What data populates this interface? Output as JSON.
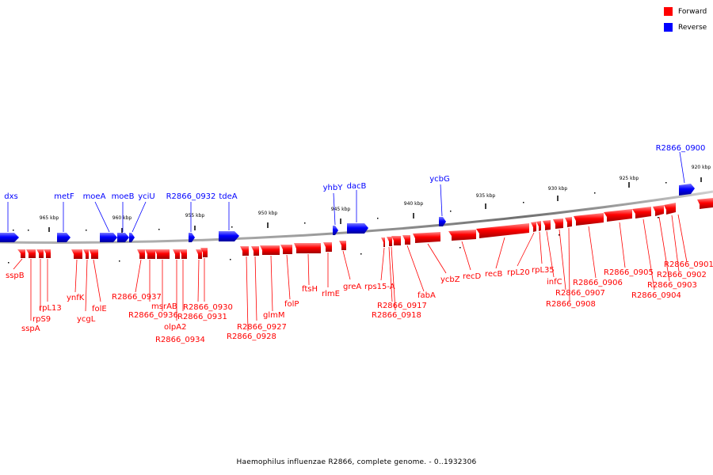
{
  "caption": "Haemophilus influenzae R2866, complete genome. - 0..1932306",
  "legend": {
    "forward": {
      "label": "Forward",
      "color": "#ff0000"
    },
    "reverse": {
      "label": "Reverse",
      "color": "#0000ff"
    }
  },
  "axis": {
    "ticks": [
      "965 kbp",
      "960 kbp",
      "955 kbp",
      "950 kbp",
      "945 kbp",
      "940 kbp",
      "935 kbp",
      "930 kbp",
      "925 kbp",
      "920 kbp"
    ]
  },
  "reverse_genes": [
    "dxs",
    "metF",
    "moeA",
    "moeB",
    "yciU",
    "R2866_0932",
    "tdeA",
    "yhbY",
    "dacB",
    "ycbG",
    "R2866_0900"
  ],
  "forward_genes": [
    "sspB",
    "sspA",
    "rpS9",
    "rpL13",
    "ynfK",
    "ycgL",
    "folE",
    "R2866_0937",
    "msrAB",
    "R2866_0936",
    "olpA2",
    "R2866_0934",
    "R2866_0931",
    "R2866_0930",
    "R2866_0927",
    "R2866_0928",
    "glmM",
    "folP",
    "ftsH",
    "rlmE",
    "greA",
    "rps15-A",
    "R2866_0917",
    "R2866_0918",
    "fabA",
    "ycbZ",
    "recD",
    "recB",
    "rpL20",
    "rpL35",
    "infC",
    "R2866_0907",
    "R2866_0908",
    "R2866_0906",
    "R2866_0905",
    "R2866_0904",
    "R2866_0903",
    "R2866_0902",
    "R2866_0901"
  ]
}
